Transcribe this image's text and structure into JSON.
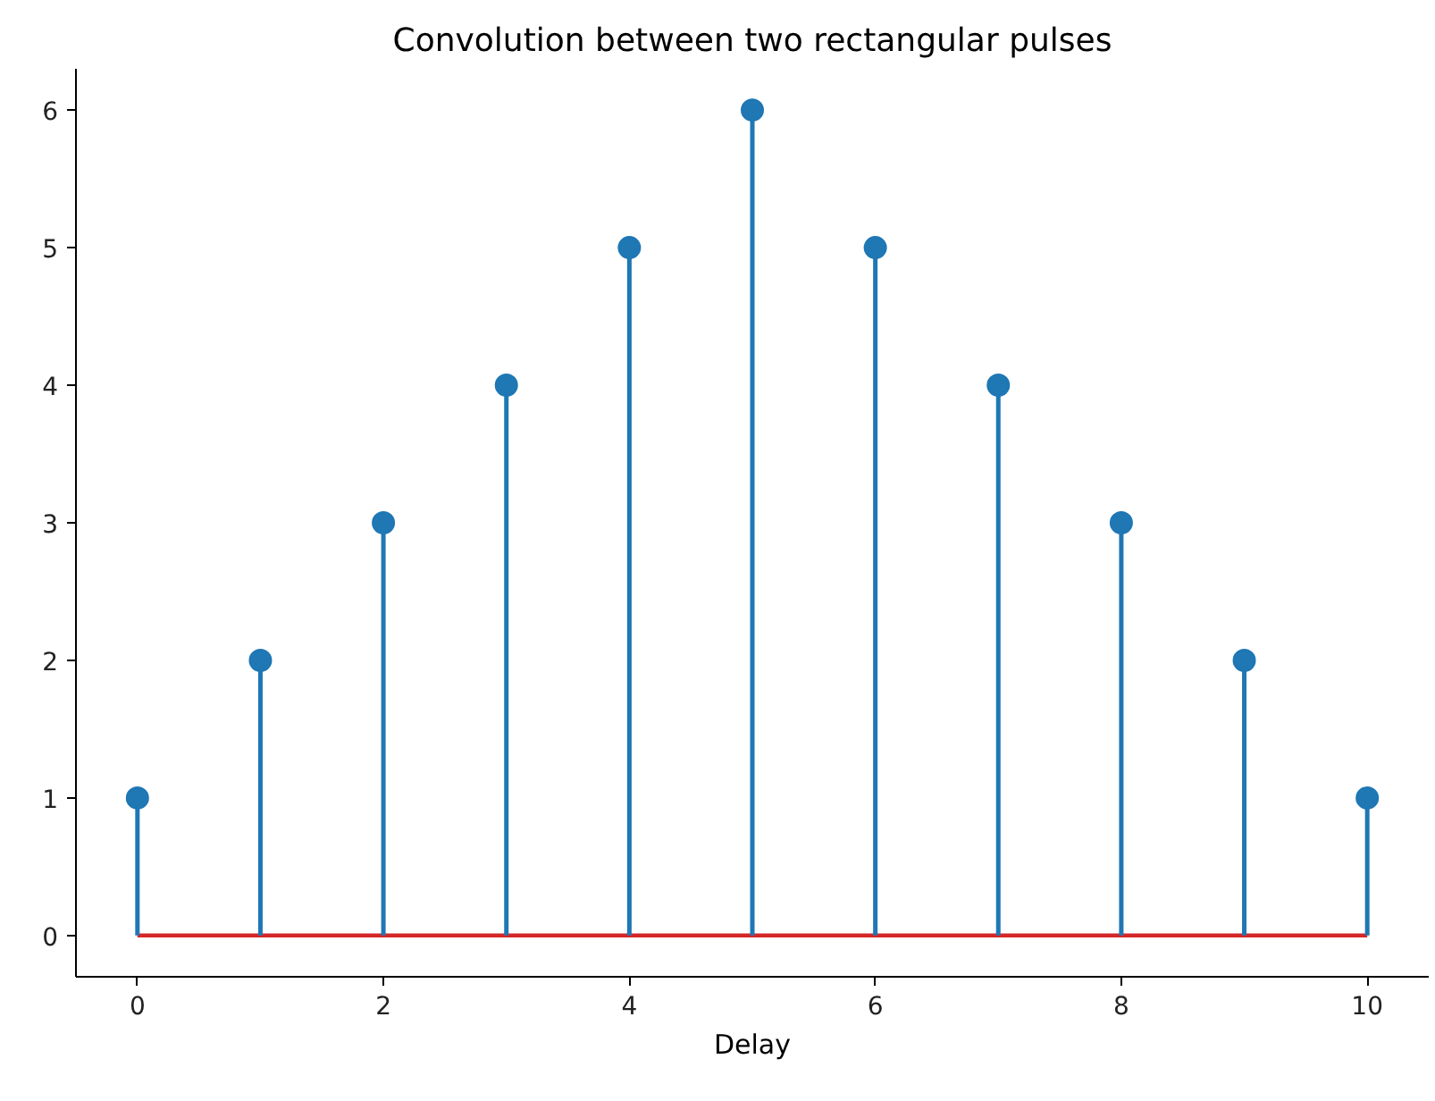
{
  "chart_data": {
    "type": "lollipop",
    "title": "Convolution between two rectangular pulses",
    "xlabel": "Delay",
    "x": [
      0,
      1,
      2,
      3,
      4,
      5,
      6,
      7,
      8,
      9,
      10
    ],
    "series": [
      {
        "color": "#1f77b4",
        "values": [
          1,
          2,
          3,
          4,
          5,
          6,
          5,
          4,
          3,
          2,
          1
        ]
      }
    ],
    "xlim": [
      -0.5,
      10.5
    ],
    "ylim": [
      -0.3,
      6.3
    ],
    "xticks": [
      0,
      2,
      4,
      6,
      8,
      10
    ],
    "yticks": [
      0,
      1,
      2,
      3,
      4,
      5,
      6
    ],
    "ref_lines": [
      {
        "axis": "y",
        "value": 0,
        "color": "#d62728"
      }
    ],
    "marker": "circle"
  }
}
